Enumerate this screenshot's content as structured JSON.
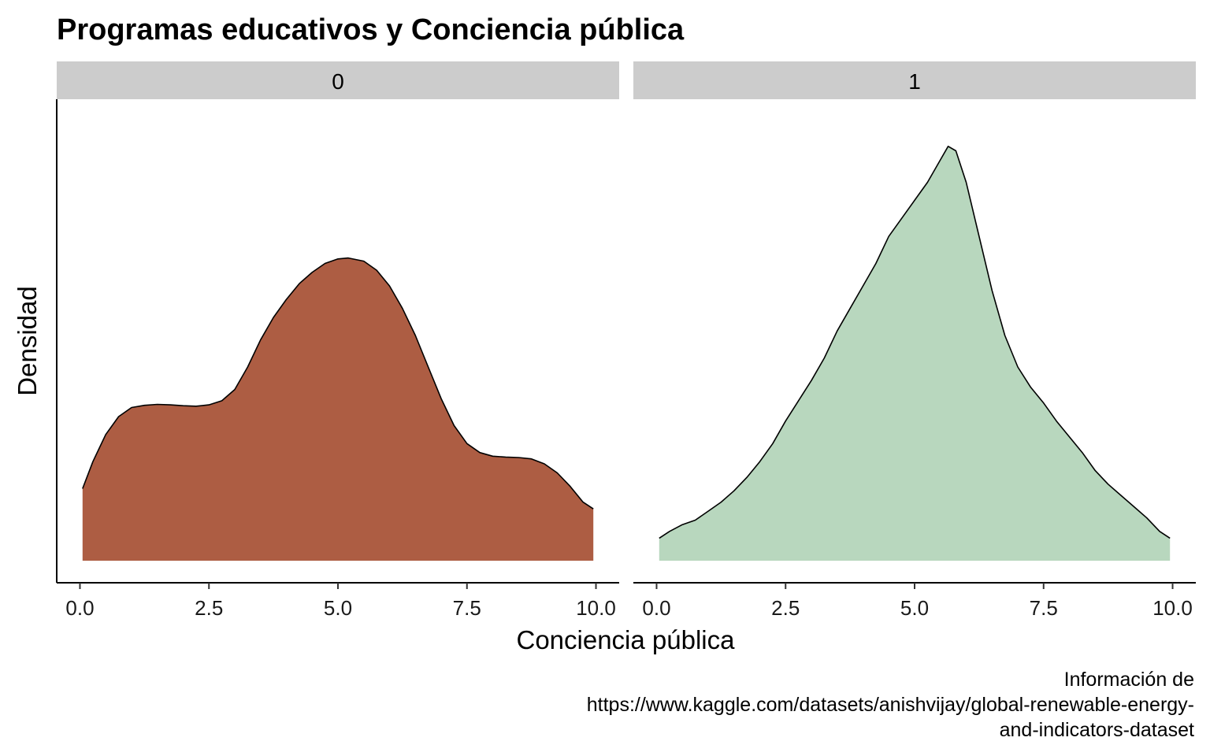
{
  "chart_data": {
    "type": "area",
    "subtype": "faceted-density",
    "title": "Programas educativos y Conciencia pública",
    "xlabel": "Conciencia pública",
    "ylabel": "Densidad",
    "xlim": [
      -0.45,
      10.45
    ],
    "ylim": [
      0,
      1.0
    ],
    "x_ticks": [
      "0.0",
      "2.5",
      "5.0",
      "7.5",
      "10.0"
    ],
    "x_tick_values": [
      0,
      2.5,
      5,
      7.5,
      10
    ],
    "y_ticks_shown": false,
    "grid": false,
    "legend": "none",
    "caption_lines": [
      "Información de",
      "https://www.kaggle.com/datasets/anishvijay/global-renewable-energy-",
      "and-indicators-dataset"
    ],
    "facets": [
      {
        "strip_label": "0",
        "fill_color": "#AD5D43",
        "x": [
          0.05,
          0.25,
          0.5,
          0.75,
          1.0,
          1.25,
          1.5,
          1.75,
          2.0,
          2.25,
          2.5,
          2.75,
          3.0,
          3.25,
          3.5,
          3.75,
          4.0,
          4.25,
          4.5,
          4.75,
          5.0,
          5.2,
          5.5,
          5.75,
          6.0,
          6.25,
          6.5,
          6.75,
          7.0,
          7.25,
          7.5,
          7.75,
          8.0,
          8.25,
          8.5,
          8.75,
          9.0,
          9.25,
          9.5,
          9.75,
          9.95
        ],
        "y": [
          0.16,
          0.22,
          0.28,
          0.32,
          0.34,
          0.345,
          0.347,
          0.346,
          0.344,
          0.343,
          0.346,
          0.355,
          0.38,
          0.43,
          0.49,
          0.54,
          0.58,
          0.615,
          0.64,
          0.66,
          0.67,
          0.672,
          0.665,
          0.645,
          0.61,
          0.56,
          0.5,
          0.43,
          0.36,
          0.3,
          0.26,
          0.24,
          0.232,
          0.23,
          0.229,
          0.226,
          0.215,
          0.195,
          0.165,
          0.13,
          0.115
        ]
      },
      {
        "strip_label": "1",
        "fill_color": "#B8D7BE",
        "x": [
          0.05,
          0.25,
          0.5,
          0.75,
          1.0,
          1.25,
          1.5,
          1.75,
          2.0,
          2.25,
          2.5,
          2.75,
          3.0,
          3.25,
          3.5,
          3.75,
          4.0,
          4.25,
          4.5,
          4.75,
          5.0,
          5.25,
          5.5,
          5.65,
          5.8,
          6.0,
          6.25,
          6.5,
          6.75,
          7.0,
          7.25,
          7.5,
          7.75,
          8.0,
          8.25,
          8.5,
          8.75,
          9.0,
          9.25,
          9.5,
          9.75,
          9.95
        ],
        "y": [
          0.05,
          0.065,
          0.08,
          0.09,
          0.11,
          0.13,
          0.155,
          0.185,
          0.22,
          0.26,
          0.31,
          0.355,
          0.4,
          0.45,
          0.51,
          0.56,
          0.61,
          0.66,
          0.72,
          0.76,
          0.8,
          0.84,
          0.89,
          0.92,
          0.91,
          0.84,
          0.72,
          0.6,
          0.5,
          0.43,
          0.385,
          0.35,
          0.31,
          0.275,
          0.24,
          0.2,
          0.17,
          0.145,
          0.12,
          0.095,
          0.065,
          0.05
        ]
      }
    ]
  }
}
